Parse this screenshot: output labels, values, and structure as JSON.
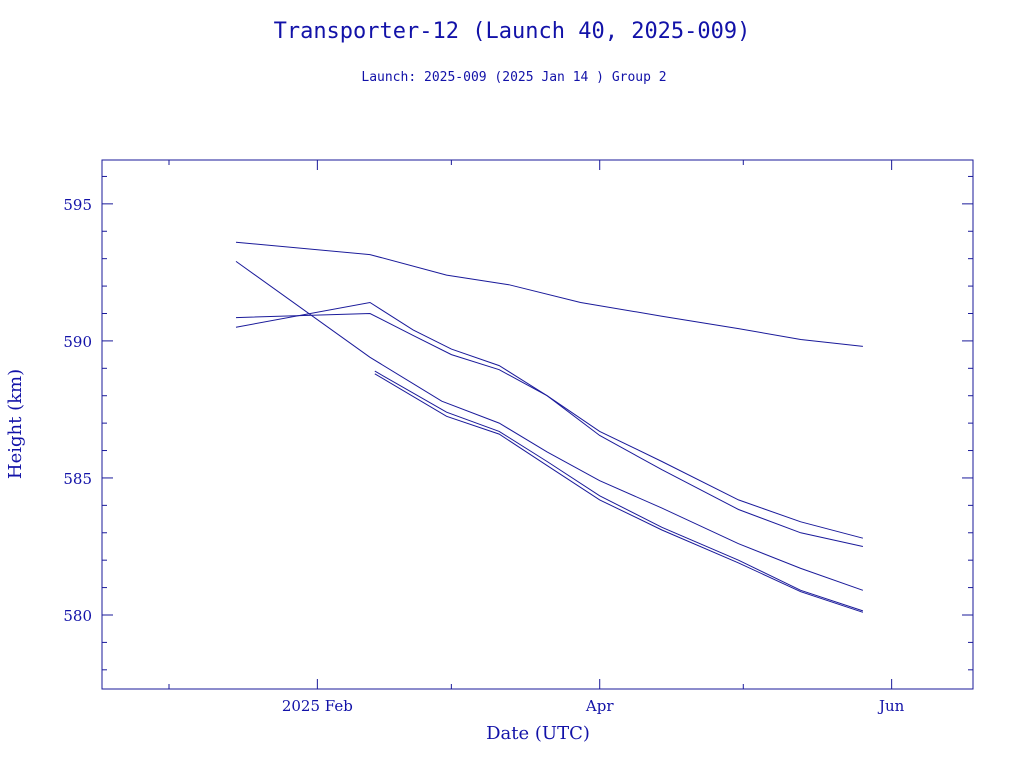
{
  "chart_data": {
    "type": "line",
    "title": "Transporter-12 (Launch 40, 2025-009)",
    "subtitle": "Launch: 2025-009  (2025 Jan 14 )  Group 2",
    "xlabel": "Date (UTC)",
    "ylabel": "Height (km)",
    "xlim": [
      "2024-12-18",
      "2025-06-18"
    ],
    "ylim": [
      577.3,
      596.6
    ],
    "x_ticks": [
      {
        "date": "2025-02-01",
        "label": "2025 Feb"
      },
      {
        "date": "2025-04-01",
        "label": "Apr"
      },
      {
        "date": "2025-06-01",
        "label": "Jun"
      }
    ],
    "x_minor_ticks": [
      "2025-01-01",
      "2025-03-01",
      "2025-05-01"
    ],
    "y_ticks": [
      {
        "value": 580,
        "label": "580"
      },
      {
        "value": 585,
        "label": "585"
      },
      {
        "value": 590,
        "label": "590"
      },
      {
        "value": 595,
        "label": "595"
      }
    ],
    "y_minor_step": 1,
    "grid": false,
    "color": "#1a1a9a",
    "series": [
      {
        "x": [
          "2025-01-15",
          "2025-02-12",
          "2025-02-28",
          "2025-03-13",
          "2025-03-28",
          "2025-04-14",
          "2025-04-30",
          "2025-05-13",
          "2025-05-26"
        ],
        "y": [
          593.6,
          593.15,
          592.4,
          592.05,
          591.4,
          590.9,
          590.45,
          590.05,
          589.8
        ]
      },
      {
        "x": [
          "2025-01-15",
          "2025-02-12",
          "2025-02-21",
          "2025-03-01",
          "2025-03-11",
          "2025-03-21",
          "2025-04-01",
          "2025-04-14",
          "2025-04-30",
          "2025-05-13",
          "2025-05-26"
        ],
        "y": [
          590.5,
          591.4,
          590.4,
          589.7,
          589.1,
          588.0,
          586.7,
          585.6,
          584.2,
          583.4,
          582.8
        ]
      },
      {
        "x": [
          "2025-01-15",
          "2025-02-12",
          "2025-02-21",
          "2025-03-01",
          "2025-03-11",
          "2025-03-21",
          "2025-04-01",
          "2025-04-14",
          "2025-04-30",
          "2025-05-13",
          "2025-05-26"
        ],
        "y": [
          590.85,
          591.0,
          590.2,
          589.5,
          588.95,
          588.0,
          586.55,
          585.3,
          583.85,
          583.0,
          582.5
        ]
      },
      {
        "x": [
          "2025-01-15",
          "2025-02-12",
          "2025-02-27",
          "2025-03-11",
          "2025-03-21",
          "2025-04-01",
          "2025-04-14",
          "2025-04-30",
          "2025-05-13",
          "2025-05-26"
        ],
        "y": [
          592.9,
          589.4,
          587.8,
          587.0,
          585.95,
          584.9,
          583.9,
          582.6,
          581.7,
          580.9
        ]
      },
      {
        "x": [
          "2025-02-13",
          "2025-02-28",
          "2025-03-11",
          "2025-03-21",
          "2025-04-01",
          "2025-04-14",
          "2025-04-30",
          "2025-05-13",
          "2025-05-26"
        ],
        "y": [
          588.9,
          587.4,
          586.7,
          585.6,
          584.35,
          583.2,
          582.0,
          580.9,
          580.15
        ]
      },
      {
        "x": [
          "2025-02-13",
          "2025-02-28",
          "2025-03-11",
          "2025-03-21",
          "2025-04-01",
          "2025-04-14",
          "2025-04-30",
          "2025-05-13",
          "2025-05-26"
        ],
        "y": [
          588.8,
          587.25,
          586.6,
          585.45,
          584.2,
          583.1,
          581.9,
          580.85,
          580.1
        ]
      }
    ]
  }
}
